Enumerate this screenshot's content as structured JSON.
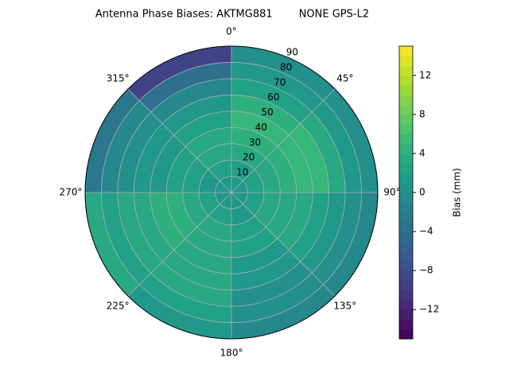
{
  "chart_data": {
    "type": "polar-contour",
    "title": "Antenna Phase Biases: AKTMG881        NONE GPS-L2",
    "colorbar_label": "Bias (mm)",
    "colormap": "viridis",
    "azimuth_bins": [
      0,
      45,
      90,
      135,
      180,
      225,
      270,
      315,
      360
    ],
    "zenith_bins": [
      0,
      10,
      20,
      30,
      40,
      50,
      60,
      70,
      80,
      90
    ],
    "values": [
      [
        1,
        2,
        3,
        4,
        5,
        4,
        2,
        1,
        0
      ],
      [
        1,
        2,
        3,
        4,
        5,
        5,
        3,
        1,
        0
      ],
      [
        1,
        2,
        3,
        3,
        3,
        2,
        1,
        0,
        -1
      ],
      [
        1,
        1,
        2,
        2,
        1,
        1,
        0,
        0,
        -1
      ],
      [
        1,
        2,
        3,
        3,
        3,
        3,
        3,
        2,
        1
      ],
      [
        1,
        2,
        3,
        4,
        4,
        3,
        3,
        2,
        3
      ],
      [
        1,
        1,
        2,
        2,
        1,
        1,
        0,
        -1,
        -3
      ],
      [
        1,
        2,
        3,
        3,
        2,
        1,
        -1,
        -4,
        -9
      ]
    ],
    "rlim": [
      0,
      90
    ],
    "rticks": [
      10,
      20,
      30,
      40,
      50,
      60,
      70,
      80,
      90
    ],
    "angle_ticks": [
      {
        "value": 0,
        "label": "0°"
      },
      {
        "value": 45,
        "label": "45°"
      },
      {
        "value": 90,
        "label": "90°"
      },
      {
        "value": 135,
        "label": "135°"
      },
      {
        "value": 180,
        "label": "180°"
      },
      {
        "value": 225,
        "label": "225°"
      },
      {
        "value": 270,
        "label": "270°"
      },
      {
        "value": 315,
        "label": "315°"
      }
    ],
    "clim": [
      -15,
      15
    ],
    "cticks": [
      {
        "value": -12,
        "label": "−12"
      },
      {
        "value": -8,
        "label": "−8"
      },
      {
        "value": -4,
        "label": "−4"
      },
      0,
      4,
      8,
      12
    ],
    "grid": true
  }
}
